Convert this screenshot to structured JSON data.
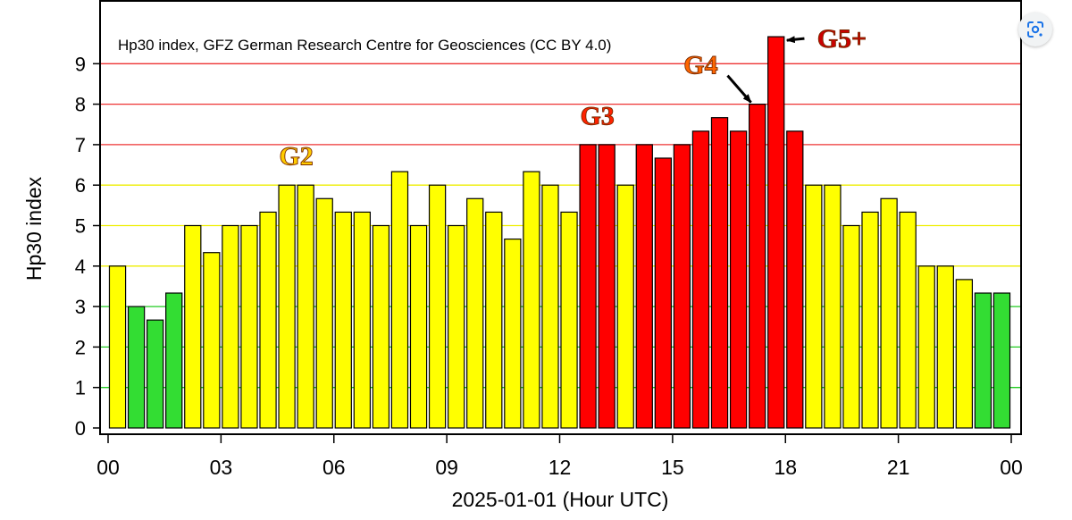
{
  "chart_data": {
    "type": "bar",
    "title": "Hp30 index, GFZ German Research Centre for Geosciences (CC BY 4.0)",
    "xlabel": "2025-01-01 (Hour UTC)",
    "ylabel": "Hp30 index",
    "ylim": [
      0,
      10
    ],
    "yticks": [
      "0",
      "1",
      "2",
      "3",
      "4",
      "5",
      "6",
      "7",
      "8",
      "9"
    ],
    "xticks": [
      "00",
      "03",
      "06",
      "09",
      "12",
      "15",
      "18",
      "21",
      "00"
    ],
    "xlim_hours": [
      0,
      24
    ],
    "bar_interval_hours": 0.5,
    "values": [
      4,
      3,
      2.667,
      3.333,
      5,
      4.333,
      5,
      5,
      5.333,
      6,
      6,
      5.667,
      5.333,
      5.333,
      5,
      6.333,
      5,
      6,
      5,
      5.667,
      5.333,
      4.667,
      6.333,
      6,
      5.333,
      7,
      7,
      6,
      7,
      6.667,
      7,
      7.333,
      7.667,
      7.333,
      8,
      9.667,
      7.333,
      6,
      6,
      5,
      5.333,
      5.667,
      5.333,
      4,
      4,
      3.667,
      3.333,
      3.333
    ],
    "colors": {
      "quiet": "#33dd33",
      "moderate": "#ffff00",
      "storm": "#ff0000",
      "outline": "#000000",
      "label_g2": "#ffcc00",
      "label_g3": "#ff2200",
      "label_g4": "#ff6600",
      "label_g5": "#cc0000"
    },
    "gridlines": [
      {
        "y": 1,
        "color": "#22cc22"
      },
      {
        "y": 2,
        "color": "#22cc22"
      },
      {
        "y": 3,
        "color": "#22cc22"
      },
      {
        "y": 4,
        "color": "#eeee00"
      },
      {
        "y": 5,
        "color": "#eeee00"
      },
      {
        "y": 6,
        "color": "#eeee00"
      },
      {
        "y": 7,
        "color": "#ee3333"
      },
      {
        "y": 8,
        "color": "#ee3333"
      },
      {
        "y": 9,
        "color": "#ee3333"
      }
    ],
    "annotations": [
      {
        "text": "G2",
        "bar_index": 9.5,
        "y": 6.5,
        "color": "#ffcc00"
      },
      {
        "text": "G3",
        "bar_index": 25.5,
        "y": 7.5,
        "color": "#ff2200"
      },
      {
        "text": "G4",
        "bar_index": 31,
        "y": 8.75,
        "color": "#ff6600",
        "arrow_to_bar": 34
      },
      {
        "text": "G5+",
        "bar_index": 38.5,
        "y": 9.4,
        "color": "#cc0000",
        "arrow_to_bar": 35
      }
    ]
  },
  "ui": {
    "lens_icon": "google-lens-icon"
  }
}
